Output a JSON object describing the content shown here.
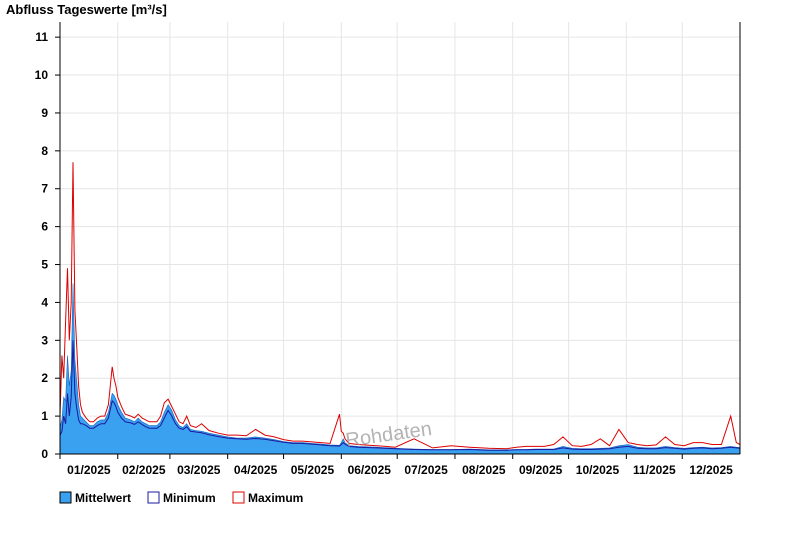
{
  "chart_data": {
    "type": "area",
    "title": "Abfluss Tageswerte [m³/s]",
    "watermark": "Rohdaten",
    "ylim": [
      0,
      11.4
    ],
    "y_ticks": [
      0,
      1,
      2,
      3,
      4,
      5,
      6,
      7,
      8,
      9,
      10,
      11
    ],
    "x_range_days": [
      0,
      365
    ],
    "x_ticks": [
      {
        "label": "01/2025",
        "day": 0
      },
      {
        "label": "02/2025",
        "day": 31
      },
      {
        "label": "03/2025",
        "day": 59
      },
      {
        "label": "04/2025",
        "day": 90
      },
      {
        "label": "05/2025",
        "day": 120
      },
      {
        "label": "06/2025",
        "day": 151
      },
      {
        "label": "07/2025",
        "day": 181
      },
      {
        "label": "08/2025",
        "day": 212
      },
      {
        "label": "09/2025",
        "day": 243
      },
      {
        "label": "10/2025",
        "day": 273
      },
      {
        "label": "11/2025",
        "day": 304
      },
      {
        "label": "12/2025",
        "day": 334
      }
    ],
    "grid": true,
    "legend_position": "bottom-left",
    "colors": {
      "mittelwert_fill": "#3aa0f0",
      "minimum_line": "#1a1aa0",
      "maximum_line": "#dd0000",
      "grid": "#e6e6e6"
    },
    "series": [
      {
        "name": "Mittelwert",
        "x": [
          0,
          1,
          2,
          3,
          4,
          5,
          6,
          7,
          8,
          9,
          10,
          11,
          12,
          14,
          16,
          18,
          20,
          22,
          24,
          26,
          28,
          29,
          30,
          31,
          33,
          35,
          38,
          40,
          42,
          44,
          46,
          48,
          50,
          52,
          54,
          56,
          58,
          60,
          62,
          64,
          66,
          68,
          70,
          73,
          76,
          80,
          85,
          90,
          95,
          100,
          105,
          110,
          115,
          120,
          125,
          130,
          135,
          140,
          145,
          150,
          151,
          152,
          153,
          155,
          160,
          170,
          180,
          190,
          200,
          210,
          220,
          230,
          240,
          245,
          250,
          255,
          260,
          265,
          270,
          275,
          280,
          285,
          290,
          295,
          300,
          305,
          310,
          315,
          320,
          325,
          330,
          335,
          340,
          345,
          350,
          355,
          360,
          363,
          365
        ],
        "y": [
          0.7,
          0.9,
          1.5,
          1.4,
          2.6,
          1.8,
          2.2,
          4.5,
          2.5,
          1.9,
          1.3,
          1.0,
          0.95,
          0.85,
          0.75,
          0.75,
          0.85,
          0.9,
          0.9,
          1.1,
          1.6,
          1.55,
          1.45,
          1.3,
          1.1,
          0.95,
          0.9,
          0.85,
          0.95,
          0.85,
          0.8,
          0.75,
          0.75,
          0.75,
          0.85,
          1.1,
          1.3,
          1.15,
          0.9,
          0.75,
          0.7,
          0.8,
          0.65,
          0.62,
          0.6,
          0.55,
          0.5,
          0.45,
          0.42,
          0.42,
          0.45,
          0.42,
          0.38,
          0.33,
          0.3,
          0.3,
          0.28,
          0.26,
          0.24,
          0.23,
          0.3,
          0.4,
          0.3,
          0.22,
          0.2,
          0.18,
          0.15,
          0.13,
          0.12,
          0.12,
          0.13,
          0.11,
          0.11,
          0.12,
          0.12,
          0.13,
          0.13,
          0.13,
          0.2,
          0.15,
          0.14,
          0.14,
          0.15,
          0.16,
          0.22,
          0.25,
          0.18,
          0.16,
          0.16,
          0.2,
          0.17,
          0.15,
          0.17,
          0.18,
          0.16,
          0.17,
          0.2,
          0.18,
          0.17
        ]
      },
      {
        "name": "Minimum",
        "x": [
          0,
          1,
          2,
          3,
          4,
          5,
          6,
          7,
          8,
          9,
          10,
          11,
          12,
          14,
          16,
          18,
          20,
          22,
          24,
          26,
          28,
          29,
          30,
          31,
          33,
          35,
          38,
          40,
          42,
          44,
          46,
          48,
          50,
          52,
          54,
          56,
          58,
          60,
          62,
          64,
          66,
          68,
          70,
          73,
          76,
          80,
          85,
          90,
          95,
          100,
          105,
          110,
          115,
          120,
          125,
          130,
          135,
          140,
          145,
          150,
          151,
          152,
          153,
          155,
          160,
          170,
          180,
          190,
          200,
          210,
          220,
          230,
          240,
          245,
          250,
          255,
          260,
          265,
          270,
          275,
          280,
          285,
          290,
          295,
          300,
          305,
          310,
          315,
          320,
          325,
          330,
          335,
          340,
          345,
          350,
          355,
          360,
          363,
          365
        ],
        "y": [
          0.5,
          0.6,
          1.0,
          0.8,
          1.6,
          1.0,
          1.5,
          3.0,
          1.6,
          1.2,
          0.9,
          0.8,
          0.8,
          0.75,
          0.68,
          0.68,
          0.75,
          0.8,
          0.8,
          0.95,
          1.4,
          1.35,
          1.25,
          1.1,
          0.95,
          0.85,
          0.82,
          0.78,
          0.85,
          0.78,
          0.72,
          0.68,
          0.68,
          0.68,
          0.75,
          0.95,
          1.15,
          1.0,
          0.8,
          0.68,
          0.65,
          0.72,
          0.6,
          0.58,
          0.56,
          0.51,
          0.46,
          0.42,
          0.4,
          0.39,
          0.41,
          0.39,
          0.35,
          0.31,
          0.28,
          0.28,
          0.26,
          0.24,
          0.22,
          0.21,
          0.25,
          0.3,
          0.26,
          0.2,
          0.18,
          0.16,
          0.14,
          0.12,
          0.11,
          0.11,
          0.12,
          0.1,
          0.1,
          0.11,
          0.11,
          0.12,
          0.12,
          0.12,
          0.16,
          0.13,
          0.12,
          0.12,
          0.13,
          0.14,
          0.18,
          0.2,
          0.15,
          0.14,
          0.14,
          0.17,
          0.15,
          0.13,
          0.15,
          0.16,
          0.14,
          0.15,
          0.18,
          0.16,
          0.15
        ]
      },
      {
        "name": "Maximum",
        "x": [
          0,
          1,
          2,
          3,
          4,
          5,
          6,
          7,
          8,
          9,
          10,
          11,
          12,
          14,
          16,
          18,
          20,
          22,
          24,
          26,
          28,
          29,
          30,
          31,
          33,
          35,
          38,
          40,
          42,
          44,
          46,
          48,
          50,
          52,
          54,
          56,
          58,
          60,
          62,
          64,
          66,
          68,
          70,
          73,
          76,
          80,
          85,
          90,
          95,
          100,
          105,
          110,
          115,
          120,
          125,
          130,
          135,
          140,
          145,
          150,
          151,
          152,
          153,
          155,
          160,
          170,
          180,
          190,
          200,
          210,
          220,
          230,
          240,
          245,
          250,
          255,
          260,
          265,
          270,
          275,
          280,
          285,
          290,
          295,
          300,
          305,
          310,
          315,
          320,
          325,
          330,
          335,
          340,
          345,
          350,
          355,
          360,
          363,
          365
        ],
        "y": [
          1.0,
          2.6,
          2.0,
          3.5,
          4.9,
          3.0,
          4.0,
          7.7,
          3.8,
          2.8,
          1.8,
          1.3,
          1.1,
          0.95,
          0.85,
          0.85,
          0.95,
          1.0,
          1.0,
          1.3,
          2.3,
          2.0,
          1.8,
          1.5,
          1.25,
          1.05,
          1.0,
          0.95,
          1.05,
          0.95,
          0.9,
          0.85,
          0.85,
          0.85,
          1.0,
          1.35,
          1.45,
          1.25,
          1.05,
          0.85,
          0.8,
          1.0,
          0.75,
          0.7,
          0.8,
          0.62,
          0.55,
          0.5,
          0.5,
          0.48,
          0.65,
          0.5,
          0.45,
          0.38,
          0.34,
          0.34,
          0.32,
          0.3,
          0.28,
          1.05,
          0.6,
          0.55,
          0.4,
          0.28,
          0.25,
          0.22,
          0.18,
          0.4,
          0.16,
          0.22,
          0.18,
          0.15,
          0.14,
          0.18,
          0.2,
          0.2,
          0.2,
          0.25,
          0.45,
          0.22,
          0.2,
          0.25,
          0.4,
          0.22,
          0.65,
          0.3,
          0.25,
          0.22,
          0.24,
          0.45,
          0.25,
          0.22,
          0.3,
          0.3,
          0.25,
          0.25,
          1.0,
          0.3,
          0.25
        ]
      }
    ]
  }
}
